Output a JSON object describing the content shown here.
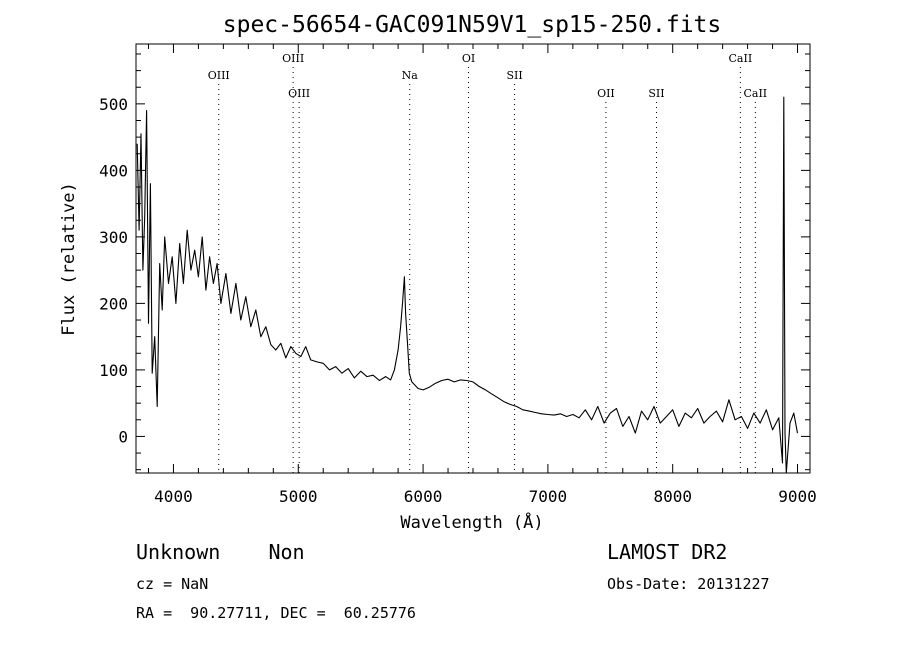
{
  "chart_data": {
    "type": "line",
    "title": "spec-56654-GAC091N59V1_sp15-250.fits",
    "xlabel": "Wavelength (Å)",
    "ylabel": "Flux (relative)",
    "xlim": [
      3700,
      9100
    ],
    "ylim": [
      -55,
      590
    ],
    "x_ticks": [
      4000,
      5000,
      6000,
      7000,
      8000,
      9000
    ],
    "y_ticks": [
      0,
      100,
      200,
      300,
      400,
      500
    ],
    "grid": false,
    "spectral_lines": [
      {
        "label": "OIII",
        "wavelength": 4363,
        "row": 2
      },
      {
        "label": "OIII",
        "wavelength": 4959,
        "row": 1
      },
      {
        "label": "OIII",
        "wavelength": 5007,
        "row": 3
      },
      {
        "label": "Na",
        "wavelength": 5893,
        "row": 2
      },
      {
        "label": "OI",
        "wavelength": 6364,
        "row": 1
      },
      {
        "label": "SII",
        "wavelength": 6733,
        "row": 2
      },
      {
        "label": "OII",
        "wavelength": 7465,
        "row": 3
      },
      {
        "label": "SII",
        "wavelength": 7870,
        "row": 3
      },
      {
        "label": "CaII",
        "wavelength": 8542,
        "row": 1
      },
      {
        "label": "CaII",
        "wavelength": 8662,
        "row": 3
      }
    ],
    "series": [
      {
        "x": [
          3710,
          3725,
          3740,
          3755,
          3770,
          3785,
          3800,
          3815,
          3830,
          3850,
          3870,
          3890,
          3910,
          3930,
          3960,
          3990,
          4020,
          4050,
          4080,
          4110,
          4140,
          4170,
          4200,
          4230,
          4260,
          4290,
          4320,
          4350,
          4380,
          4420,
          4460,
          4500,
          4540,
          4580,
          4620,
          4660,
          4700,
          4740,
          4780,
          4820,
          4860,
          4900,
          4940,
          4980,
          5020,
          5060,
          5100,
          5150,
          5200,
          5250,
          5300,
          5350,
          5400,
          5450,
          5500,
          5550,
          5600,
          5650,
          5700,
          5740,
          5770,
          5800,
          5820,
          5835,
          5850,
          5860,
          5875,
          5890,
          5910,
          5930,
          5960,
          6000,
          6050,
          6100,
          6150,
          6200,
          6250,
          6300,
          6350,
          6400,
          6450,
          6500,
          6550,
          6600,
          6650,
          6700,
          6750,
          6800,
          6850,
          6900,
          6950,
          7000,
          7050,
          7100,
          7150,
          7200,
          7250,
          7300,
          7350,
          7400,
          7450,
          7500,
          7550,
          7600,
          7650,
          7700,
          7750,
          7800,
          7850,
          7900,
          7950,
          8000,
          8050,
          8100,
          8150,
          8200,
          8250,
          8300,
          8350,
          8400,
          8450,
          8500,
          8550,
          8600,
          8650,
          8700,
          8750,
          8800,
          8850,
          8880,
          8890,
          8900,
          8910,
          8940,
          8970,
          9000
        ],
        "y": [
          440,
          310,
          455,
          250,
          330,
          490,
          170,
          380,
          95,
          150,
          45,
          260,
          190,
          300,
          230,
          270,
          200,
          290,
          230,
          310,
          250,
          280,
          240,
          300,
          220,
          270,
          230,
          260,
          200,
          245,
          185,
          230,
          175,
          210,
          165,
          190,
          150,
          165,
          138,
          130,
          140,
          118,
          135,
          125,
          120,
          135,
          115,
          112,
          110,
          100,
          105,
          95,
          102,
          88,
          98,
          90,
          92,
          84,
          90,
          85,
          100,
          130,
          165,
          200,
          240,
          185,
          140,
          95,
          82,
          78,
          72,
          70,
          74,
          80,
          84,
          86,
          82,
          85,
          84,
          82,
          75,
          70,
          64,
          58,
          52,
          48,
          45,
          40,
          38,
          36,
          34,
          33,
          32,
          34,
          30,
          33,
          28,
          40,
          25,
          45,
          20,
          35,
          42,
          15,
          30,
          5,
          38,
          25,
          45,
          20,
          30,
          40,
          15,
          35,
          28,
          42,
          20,
          30,
          38,
          22,
          55,
          25,
          30,
          12,
          35,
          20,
          40,
          10,
          28,
          -40,
          510,
          5,
          -55,
          20,
          35,
          5
        ]
      }
    ]
  },
  "footer": {
    "object": "Unknown    Non",
    "survey": "LAMOST DR2",
    "cz": "cz = NaN",
    "obs_date": "Obs-Date: 20131227",
    "radec": "RA =  90.27711, DEC =  60.25776"
  }
}
